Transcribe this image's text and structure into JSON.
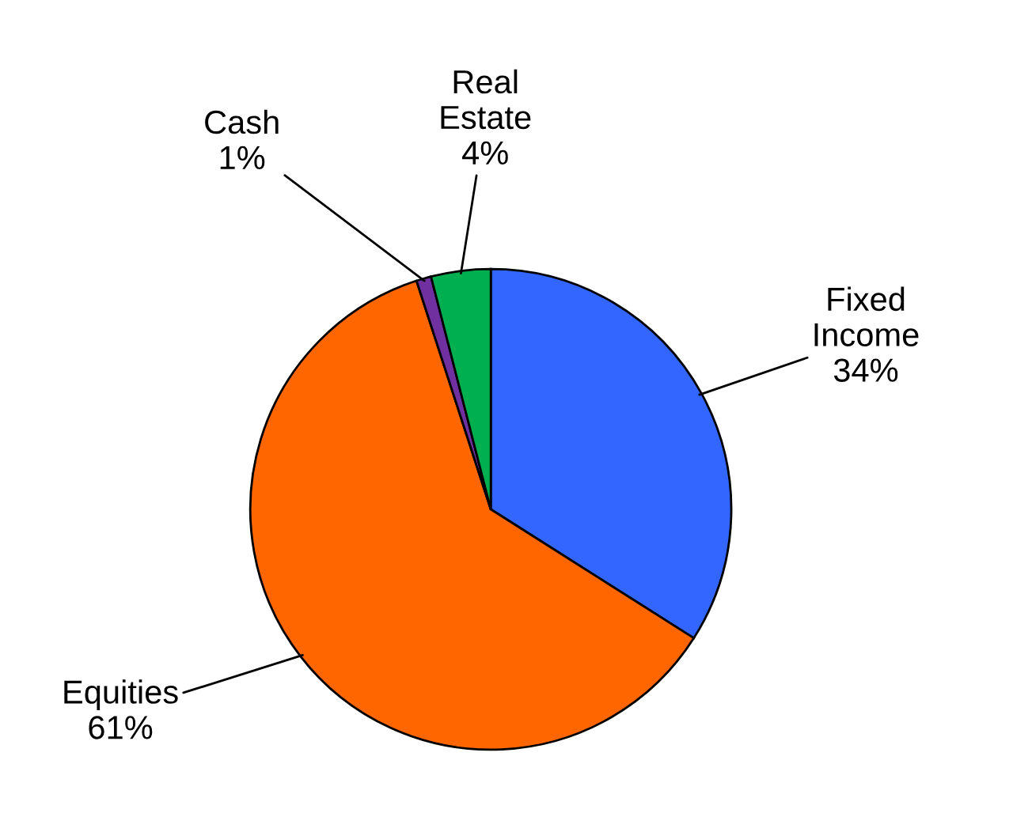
{
  "chart_data": {
    "type": "pie",
    "categories": [
      "Fixed Income",
      "Equities",
      "Cash",
      "Real Estate"
    ],
    "values": [
      34,
      61,
      1,
      4
    ],
    "colors": [
      "#3366ff",
      "#ff6600",
      "#7030a0",
      "#00b050"
    ],
    "value_labels": [
      "34%",
      "61%",
      "1%",
      "4%"
    ]
  }
}
